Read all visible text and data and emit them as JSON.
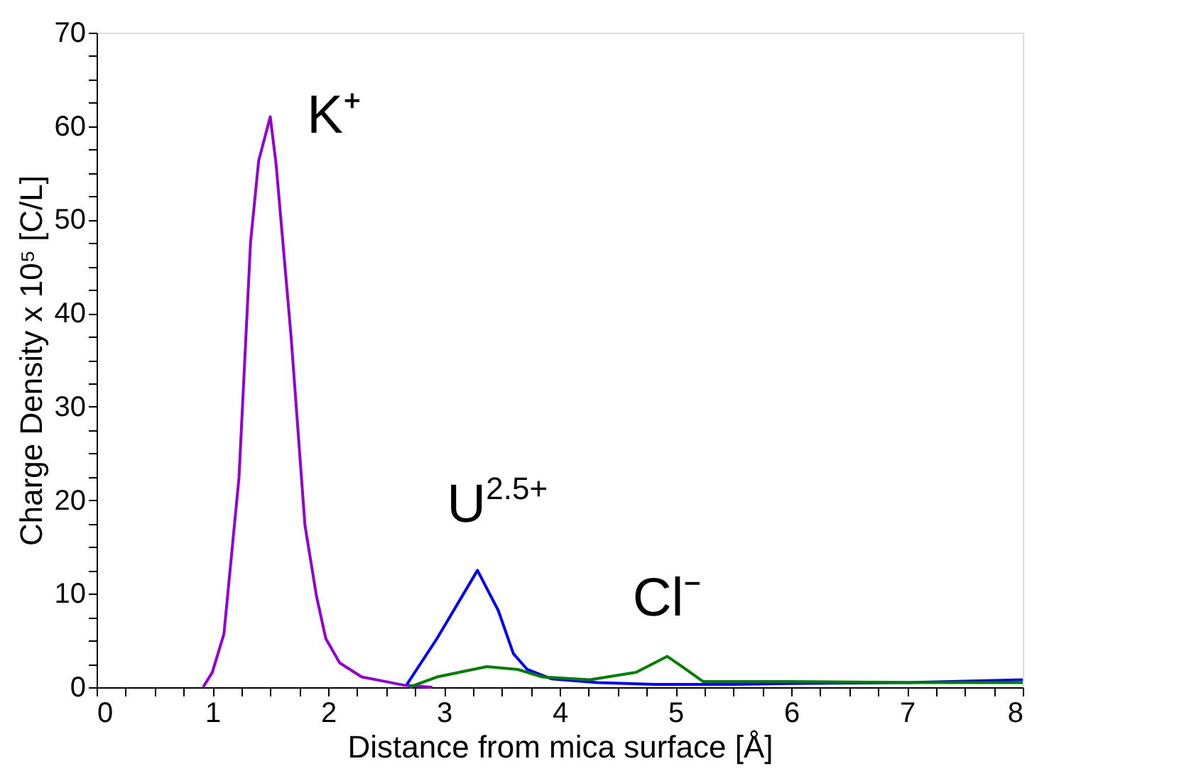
{
  "chart_data": {
    "type": "line",
    "xlabel": "Distance from mica surface [Å]",
    "ylabel": "Charge Density x 10⁵ [C/L]",
    "xlim": [
      0,
      8
    ],
    "ylim": [
      0,
      70
    ],
    "xticks": [
      0,
      {
        "value": 0.25,
        "label": null
      },
      {
        "value": 0.5,
        "label": null
      },
      {
        "value": 0.75,
        "label": null
      },
      1,
      {
        "value": 1.25,
        "label": null
      },
      {
        "value": 1.5,
        "label": null
      },
      {
        "value": 1.75,
        "label": null
      },
      2,
      {
        "value": 2.25,
        "label": null
      },
      {
        "value": 2.5,
        "label": null
      },
      {
        "value": 2.75,
        "label": null
      },
      3,
      {
        "value": 3.25,
        "label": null
      },
      {
        "value": 3.5,
        "label": null
      },
      {
        "value": 3.75,
        "label": null
      },
      4,
      {
        "value": 4.25,
        "label": null
      },
      {
        "value": 4.5,
        "label": null
      },
      {
        "value": 4.75,
        "label": null
      },
      5,
      {
        "value": 5.25,
        "label": null
      },
      {
        "value": 5.5,
        "label": null
      },
      {
        "value": 5.75,
        "label": null
      },
      6,
      {
        "value": 6.25,
        "label": null
      },
      {
        "value": 6.5,
        "label": null
      },
      {
        "value": 6.75,
        "label": null
      },
      7,
      {
        "value": 7.25,
        "label": null
      },
      {
        "value": 7.5,
        "label": null
      },
      {
        "value": 7.75,
        "label": null
      },
      8
    ],
    "yticks": [
      0,
      {
        "value": 2.5,
        "label": null
      },
      {
        "value": 5,
        "label": null
      },
      {
        "value": 7.5,
        "label": null
      },
      10,
      {
        "value": 12.5,
        "label": null
      },
      {
        "value": 15,
        "label": null
      },
      {
        "value": 17.5,
        "label": null
      },
      20,
      {
        "value": 22.5,
        "label": null
      },
      {
        "value": 25,
        "label": null
      },
      {
        "value": 27.5,
        "label": null
      },
      30,
      {
        "value": 32.5,
        "label": null
      },
      {
        "value": 35,
        "label": null
      },
      {
        "value": 37.5,
        "label": null
      },
      40,
      {
        "value": 42.5,
        "label": null
      },
      {
        "value": 45,
        "label": null
      },
      {
        "value": 47.5,
        "label": null
      },
      50,
      {
        "value": 52.5,
        "label": null
      },
      {
        "value": 55,
        "label": null
      },
      {
        "value": 57.5,
        "label": null
      },
      60,
      {
        "value": 62.5,
        "label": null
      },
      {
        "value": 65,
        "label": null
      },
      {
        "value": 67.5,
        "label": null
      },
      70
    ],
    "grid": false,
    "legend": false,
    "marker": "none",
    "line_style": "solid",
    "series": [
      {
        "name": "K⁺",
        "color": "#9400d3",
        "x": [
          0.92,
          1.0,
          1.1,
          1.23,
          1.33,
          1.4,
          1.5,
          1.55,
          1.68,
          1.8,
          1.9,
          1.98,
          2.1,
          2.29,
          2.5,
          2.66,
          2.9
        ],
        "values": [
          0,
          1.6,
          5.7,
          22.4,
          47.6,
          56.3,
          61,
          56,
          37.5,
          17.3,
          9.7,
          5.2,
          2.6,
          1.1,
          0.6,
          0.2,
          0
        ]
      },
      {
        "name": "U$^{2.5+}$",
        "color": "#0000ff",
        "x": [
          2.68,
          2.94,
          3.29,
          3.47,
          3.6,
          3.72,
          3.93,
          4.33,
          4.82,
          5.5,
          6,
          7,
          8
        ],
        "values": [
          0.3,
          5.2,
          12.5,
          8.2,
          3.6,
          1.9,
          0.9,
          0.5,
          0.3,
          0.3,
          0.4,
          0.5,
          0.8
        ]
      },
      {
        "name": "Cl⁻",
        "color": "#008000",
        "x": [
          2.7,
          2.94,
          3.37,
          3.64,
          3.85,
          4.26,
          4.66,
          4.93,
          5.07,
          5.24,
          6,
          7,
          8
        ],
        "values": [
          0,
          1.1,
          2.2,
          1.9,
          1.1,
          0.8,
          1.6,
          3.3,
          2.1,
          0.6,
          0.6,
          0.5,
          0.5
        ]
      }
    ]
  }
}
